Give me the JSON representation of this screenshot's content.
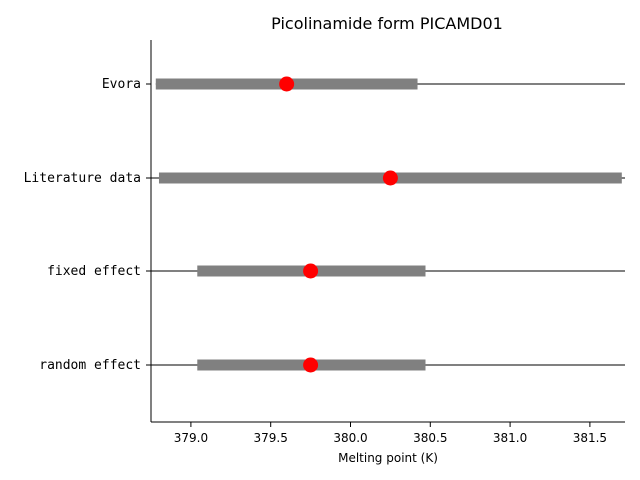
{
  "chart_data": {
    "type": "forest",
    "title": "Picolinamide form PICAMD01",
    "xlabel": "Melting point (K)",
    "ylabel": "",
    "xlim": [
      378.75,
      381.72
    ],
    "xticks": [
      "379.0",
      "379.5",
      "380.0",
      "380.5",
      "381.0",
      "381.5"
    ],
    "grid": false,
    "rows": [
      {
        "label": "Evora",
        "estimate": 379.6,
        "ci_low": 378.78,
        "ci_high": 380.42,
        "line_low": 378.78,
        "line_high": 381.72
      },
      {
        "label": "Literature data",
        "estimate": 380.25,
        "ci_low": 378.8,
        "ci_high": 381.7,
        "line_low": 378.75,
        "line_high": 381.72
      },
      {
        "label": "fixed effect",
        "estimate": 379.75,
        "ci_low": 379.04,
        "ci_high": 380.47,
        "line_low": 378.75,
        "line_high": 381.72
      },
      {
        "label": "random effect",
        "estimate": 379.75,
        "ci_low": 379.04,
        "ci_high": 380.47,
        "line_low": 378.75,
        "line_high": 381.72
      }
    ],
    "colors": {
      "bar": "#808080",
      "point": "#ff0000",
      "axis": "#000000"
    }
  }
}
